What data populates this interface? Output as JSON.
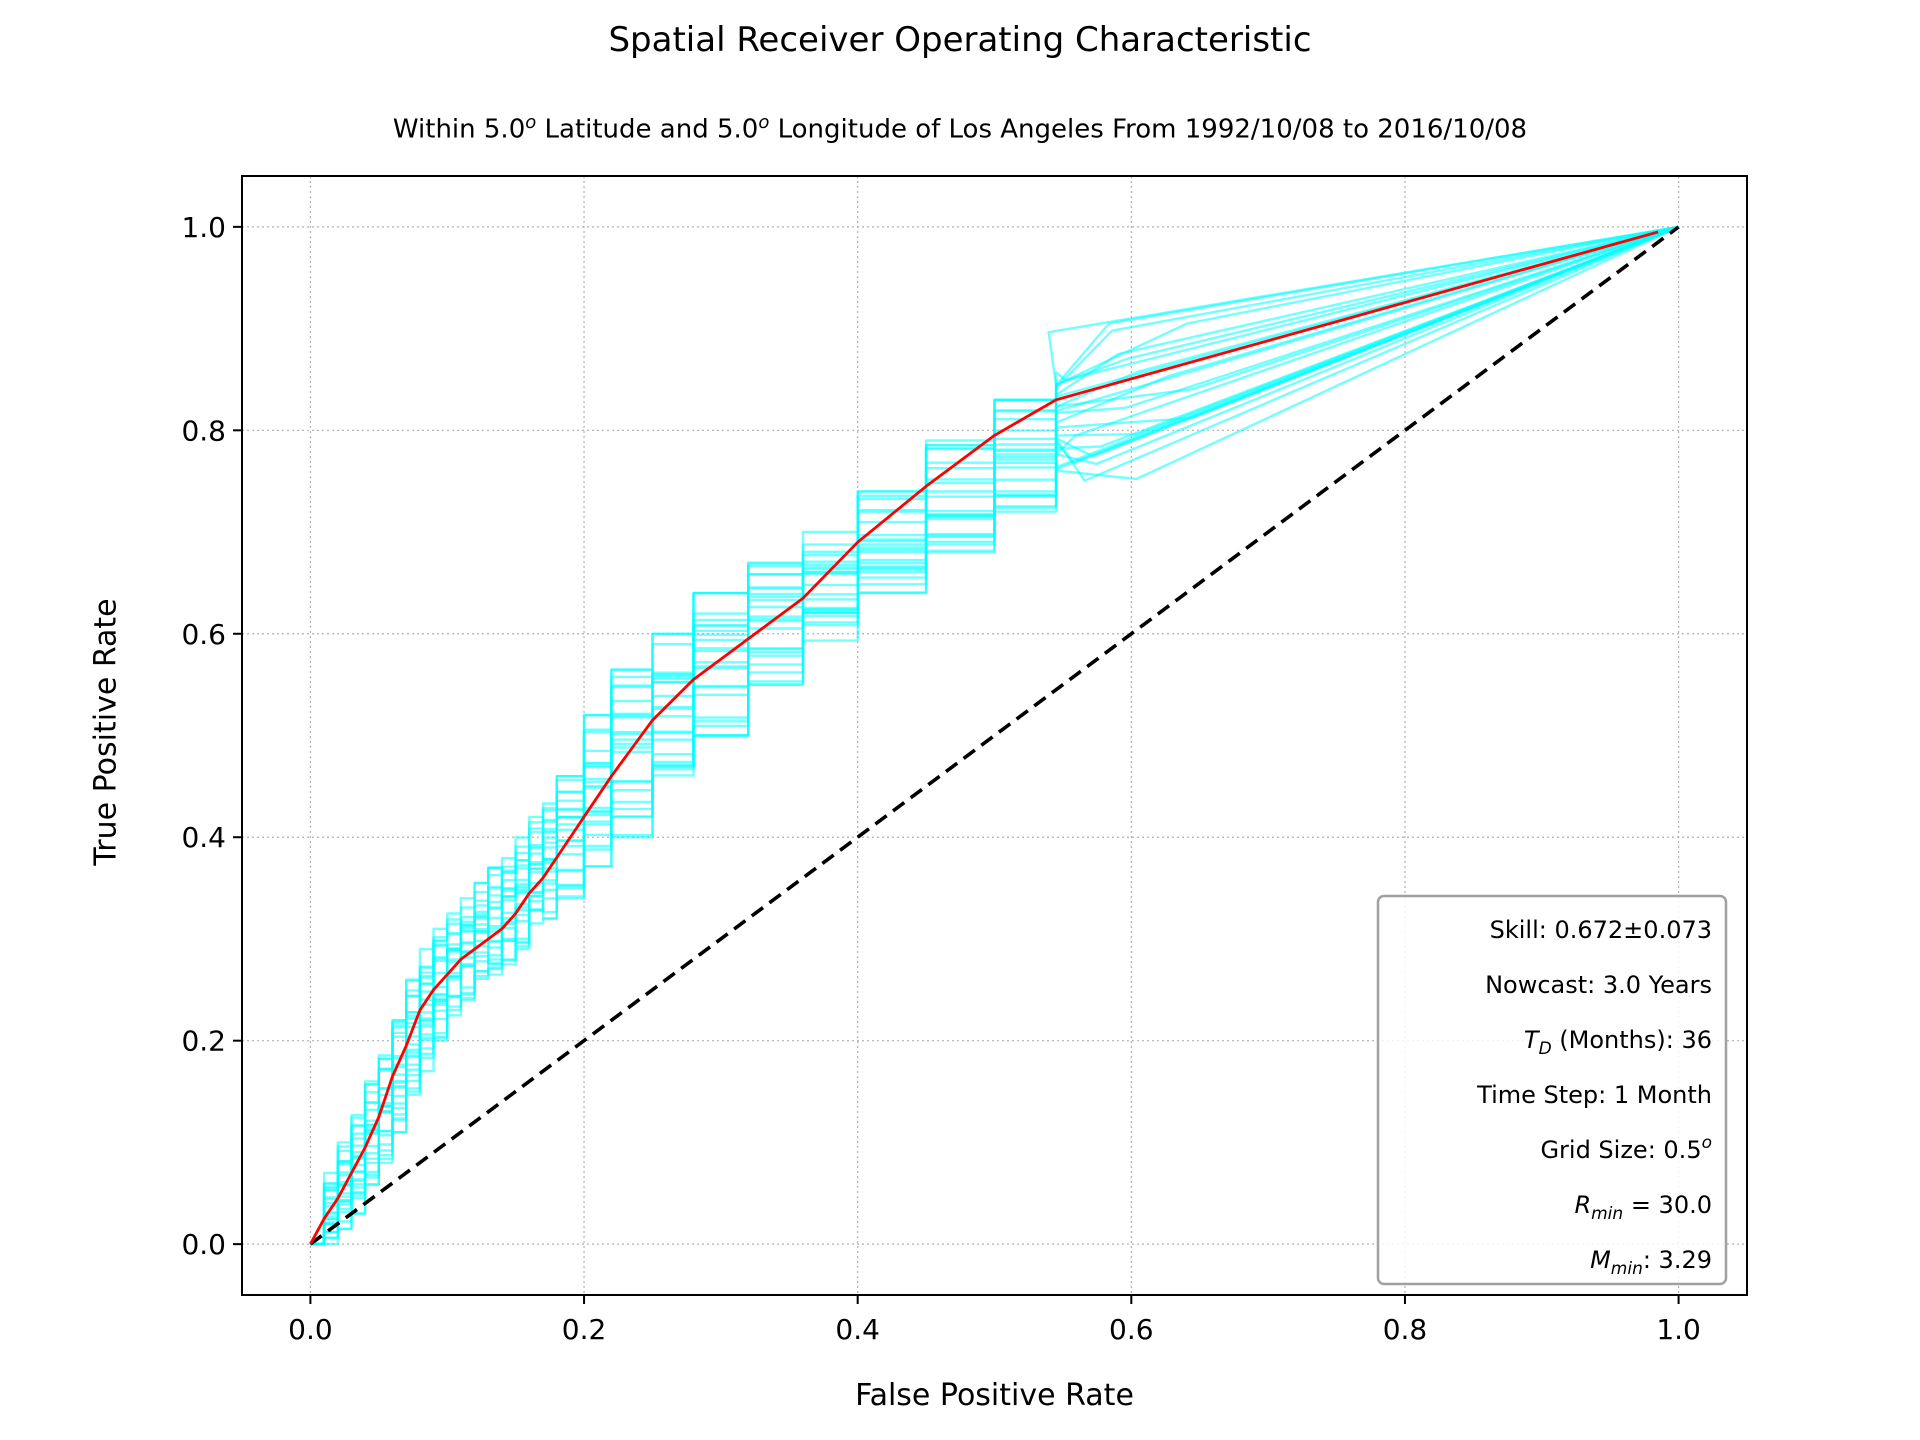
{
  "chart_data": {
    "type": "line",
    "title": "Spatial Receiver Operating Characteristic",
    "subtitle_parts": [
      "Within 5.0",
      "o",
      " Latitude and 5.0",
      "o",
      " Longitude of Los Angeles From 1992/10/08 to 2016/10/08"
    ],
    "xlabel": "False Positive Rate",
    "ylabel": "True Positive Rate",
    "xlim": [
      -0.05,
      1.05
    ],
    "ylim": [
      -0.05,
      1.05
    ],
    "xticks": [
      0.0,
      0.2,
      0.4,
      0.6,
      0.8,
      1.0
    ],
    "yticks": [
      0.0,
      0.2,
      0.4,
      0.6,
      0.8,
      1.0
    ],
    "x_tick_labels": [
      "0.0",
      "0.2",
      "0.4",
      "0.6",
      "0.8",
      "1.0"
    ],
    "y_tick_labels": [
      "0.0",
      "0.2",
      "0.4",
      "0.6",
      "0.8",
      "1.0"
    ],
    "grid": true,
    "colors": {
      "ensemble": "#00ffff",
      "mean": "#ff0000",
      "diagonal": "#000000"
    },
    "mean_curve": {
      "x": [
        0.0,
        0.01,
        0.02,
        0.03,
        0.04,
        0.05,
        0.06,
        0.07,
        0.08,
        0.09,
        0.1,
        0.11,
        0.12,
        0.13,
        0.14,
        0.15,
        0.16,
        0.17,
        0.18,
        0.2,
        0.22,
        0.25,
        0.28,
        0.32,
        0.36,
        0.4,
        0.45,
        0.5,
        0.545,
        0.985
      ],
      "y": [
        0.0,
        0.025,
        0.045,
        0.07,
        0.095,
        0.125,
        0.165,
        0.195,
        0.23,
        0.25,
        0.265,
        0.28,
        0.29,
        0.3,
        0.31,
        0.325,
        0.345,
        0.36,
        0.38,
        0.42,
        0.46,
        0.515,
        0.555,
        0.595,
        0.635,
        0.69,
        0.745,
        0.795,
        0.83,
        0.995
      ]
    },
    "ensemble": {
      "x": [
        0.0,
        0.01,
        0.02,
        0.03,
        0.04,
        0.05,
        0.06,
        0.07,
        0.08,
        0.09,
        0.1,
        0.11,
        0.12,
        0.13,
        0.14,
        0.15,
        0.16,
        0.17,
        0.18,
        0.2,
        0.22,
        0.25,
        0.28,
        0.32,
        0.36,
        0.4,
        0.45,
        0.5,
        0.545,
        0.59,
        1.0
      ],
      "lower": [
        0.0,
        0.0,
        0.015,
        0.03,
        0.055,
        0.08,
        0.11,
        0.14,
        0.17,
        0.2,
        0.225,
        0.24,
        0.255,
        0.265,
        0.275,
        0.29,
        0.305,
        0.32,
        0.34,
        0.37,
        0.4,
        0.45,
        0.5,
        0.55,
        0.59,
        0.64,
        0.68,
        0.72,
        0.76,
        0.74,
        1.0
      ],
      "upper": [
        0.03,
        0.07,
        0.1,
        0.13,
        0.16,
        0.19,
        0.22,
        0.26,
        0.29,
        0.31,
        0.325,
        0.34,
        0.355,
        0.37,
        0.385,
        0.4,
        0.42,
        0.44,
        0.46,
        0.52,
        0.565,
        0.6,
        0.64,
        0.67,
        0.7,
        0.74,
        0.79,
        0.83,
        0.86,
        0.905,
        1.0
      ],
      "count": 24
    },
    "diagonal": {
      "x": [
        0.0,
        1.0
      ],
      "y": [
        0.0,
        1.0
      ]
    }
  },
  "legend": {
    "lines": [
      {
        "main": "Skill: 0.672±0.073"
      },
      {
        "main": "Nowcast: 3.0 Years"
      },
      {
        "sym": "T",
        "sub": "D",
        "rest": " (Months): 36"
      },
      {
        "main": "Time Step: 1 Month"
      },
      {
        "main": "Grid Size: 0.5",
        "sup": "o"
      },
      {
        "sym": "R",
        "sub": "min",
        "rest": " = 30.0"
      },
      {
        "sym": "M",
        "sub": "min",
        "rest": ": 3.29"
      }
    ]
  }
}
